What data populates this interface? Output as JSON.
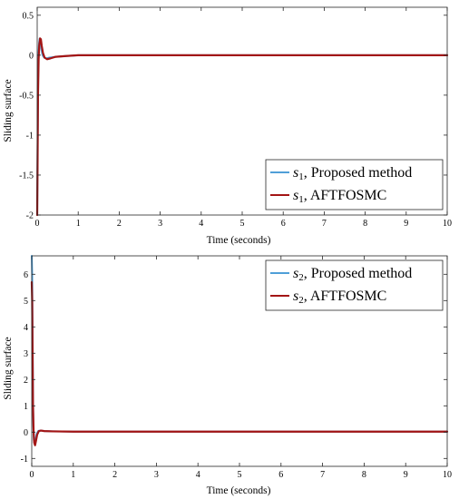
{
  "chart_data": [
    {
      "type": "line",
      "title": "",
      "xlabel": "Time (seconds)",
      "ylabel": "Sliding surface",
      "xlim": [
        0,
        10
      ],
      "ylim": [
        -2,
        0.6
      ],
      "xticks": [
        0,
        1,
        2,
        3,
        4,
        5,
        6,
        7,
        8,
        9,
        10
      ],
      "yticks": [
        -2,
        -1.5,
        -1,
        -0.5,
        0,
        0.5
      ],
      "ytick_labels": [
        "-2",
        "-1.5",
        "-1",
        "-0.5",
        "0",
        "0.5"
      ],
      "grid": false,
      "legend_position": "bottom-right",
      "series": [
        {
          "legend_var": "s",
          "legend_sub": "1",
          "legend_rest": ", Proposed method",
          "color": "#4f9fd8",
          "x": [
            0,
            0.01,
            0.02,
            0.03,
            0.045,
            0.06,
            0.08,
            0.1,
            0.13,
            0.17,
            0.22,
            0.3,
            0.45,
            0.7,
            1,
            2,
            3,
            4,
            5,
            6,
            7,
            8,
            9,
            10
          ],
          "values": [
            -2,
            -1.2,
            -0.4,
            0.0,
            0.15,
            0.21,
            0.17,
            0.08,
            0.0,
            -0.03,
            -0.04,
            -0.03,
            -0.02,
            -0.01,
            0,
            0,
            0,
            0,
            0,
            0,
            0,
            0,
            0,
            0
          ]
        },
        {
          "legend_var": "s",
          "legend_sub": "1",
          "legend_rest": ", AFTFOSMC",
          "color": "#a31515",
          "x": [
            0,
            0.01,
            0.02,
            0.035,
            0.05,
            0.07,
            0.09,
            0.11,
            0.14,
            0.18,
            0.24,
            0.32,
            0.45,
            0.7,
            1,
            2,
            3,
            4,
            5,
            6,
            7,
            8,
            9,
            10
          ],
          "values": [
            -2,
            -1.3,
            -0.5,
            -0.05,
            0.12,
            0.21,
            0.2,
            0.12,
            0.03,
            -0.03,
            -0.05,
            -0.04,
            -0.02,
            -0.01,
            0,
            0,
            0,
            0,
            0,
            0,
            0,
            0,
            0,
            0
          ]
        }
      ]
    },
    {
      "type": "line",
      "title": "",
      "xlabel": "Time (seconds)",
      "ylabel": "Sliding surface",
      "xlim": [
        0,
        10
      ],
      "ylim": [
        -1.3,
        6.7
      ],
      "xticks": [
        0,
        1,
        2,
        3,
        4,
        5,
        6,
        7,
        8,
        9,
        10
      ],
      "yticks": [
        -1,
        0,
        1,
        2,
        3,
        4,
        5,
        6
      ],
      "ytick_labels": [
        "-1",
        "0",
        "1",
        "2",
        "3",
        "4",
        "5",
        "6"
      ],
      "grid": false,
      "legend_position": "top-right",
      "series": [
        {
          "legend_var": "s",
          "legend_sub": "2",
          "legend_rest": ", Proposed method",
          "color": "#4f9fd8",
          "x": [
            0,
            0.01,
            0.02,
            0.03,
            0.04,
            0.05,
            0.07,
            0.09,
            0.12,
            0.16,
            0.22,
            0.3,
            0.5,
            1,
            2,
            3,
            4,
            5,
            6,
            7,
            8,
            9,
            10
          ],
          "values": [
            6.7,
            6.0,
            4.0,
            1.5,
            0.3,
            -0.3,
            -0.45,
            -0.3,
            -0.05,
            0.05,
            0.06,
            0.04,
            0.03,
            0.02,
            0.02,
            0.02,
            0.02,
            0.02,
            0.02,
            0.02,
            0.02,
            0.02,
            0.02
          ]
        },
        {
          "legend_var": "s",
          "legend_sub": "2",
          "legend_rest": ", AFTFOSMC",
          "color": "#a31515",
          "x": [
            0,
            0.01,
            0.02,
            0.03,
            0.045,
            0.06,
            0.08,
            0.1,
            0.13,
            0.17,
            0.22,
            0.3,
            0.5,
            1,
            2,
            3,
            4,
            5,
            6,
            7,
            8,
            9,
            10
          ],
          "values": [
            5.7,
            5.0,
            3.0,
            1.0,
            0.0,
            -0.4,
            -0.5,
            -0.35,
            -0.1,
            0.04,
            0.06,
            0.04,
            0.03,
            0.02,
            0.02,
            0.02,
            0.02,
            0.02,
            0.02,
            0.02,
            0.02,
            0.02,
            0.02
          ]
        }
      ]
    }
  ]
}
